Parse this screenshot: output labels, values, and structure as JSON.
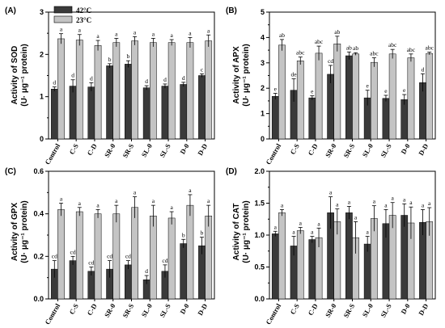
{
  "legend": [
    {
      "label": "42°C",
      "color": "#3a3a3a"
    },
    {
      "label": "23°C",
      "color": "#c4c4c4"
    }
  ],
  "chart_data": [
    {
      "type": "bar",
      "panel": "(A)",
      "ylabel_line1": "Activity of SOD",
      "ylabel_line2": "(U· μg⁻¹ protein)",
      "ylim": [
        0,
        3
      ],
      "yticks": [
        "0",
        "1",
        "2",
        "3"
      ],
      "categories": [
        "Control",
        "C-S",
        "C-D",
        "SR-0",
        "SR-S",
        "SL-0",
        "SL-S",
        "D-0",
        "D-D"
      ],
      "series": [
        {
          "name": "42°C",
          "values": [
            1.18,
            1.25,
            1.23,
            1.73,
            1.77,
            1.21,
            1.25,
            1.29,
            1.5
          ],
          "errors": [
            0.05,
            0.15,
            0.1,
            0.05,
            0.08,
            0.05,
            0.05,
            0.05,
            0.04
          ],
          "sig": [
            "d",
            "d",
            "d",
            "b",
            "b",
            "d",
            "d",
            "d",
            "c"
          ]
        },
        {
          "name": "23°C",
          "values": [
            2.37,
            2.34,
            2.21,
            2.28,
            2.32,
            2.28,
            2.28,
            2.28,
            2.32
          ],
          "errors": [
            0.12,
            0.13,
            0.12,
            0.1,
            0.1,
            0.1,
            0.07,
            0.12,
            0.14
          ],
          "sig": [
            "a",
            "a",
            "a",
            "a",
            "a",
            "a",
            "a",
            "a",
            "a"
          ]
        }
      ]
    },
    {
      "type": "bar",
      "panel": "(B)",
      "ylabel_line1": "Activity of APX",
      "ylabel_line2": "(U· μg⁻¹ protein)",
      "ylim": [
        0,
        5
      ],
      "yticks": [
        "0",
        "1",
        "2",
        "3",
        "4",
        "5"
      ],
      "categories": [
        "Control",
        "C-S",
        "C-D",
        "SR-0",
        "SR-S",
        "SL-0",
        "SL-S",
        "D-0",
        "D-D"
      ],
      "series": [
        {
          "name": "42°C",
          "values": [
            1.68,
            1.92,
            1.62,
            2.55,
            3.28,
            1.62,
            1.6,
            1.55,
            2.22
          ],
          "errors": [
            0.12,
            0.45,
            0.08,
            0.35,
            0.15,
            0.3,
            0.12,
            0.2,
            0.35
          ],
          "sig": [
            "e",
            "de",
            "e",
            "cd",
            "ab",
            "e",
            "e",
            "e",
            "d"
          ]
        },
        {
          "name": "23°C",
          "values": [
            3.7,
            3.08,
            3.38,
            3.75,
            3.35,
            3.02,
            3.35,
            3.2,
            3.37
          ],
          "errors": [
            0.22,
            0.15,
            0.28,
            0.3,
            0.05,
            0.18,
            0.18,
            0.15,
            0.05
          ],
          "sig": [
            "ab",
            "abc",
            "abc",
            "ab",
            "ab",
            "abc",
            "abc",
            "abc",
            "abc"
          ]
        }
      ]
    },
    {
      "type": "bar",
      "panel": "(C)",
      "ylabel_line1": "Activity of GPX",
      "ylabel_line2": "(U· μg⁻¹ protein)",
      "ylim": [
        0,
        0.6
      ],
      "yticks": [
        "0.0",
        "0.2",
        "0.4",
        "0.6"
      ],
      "categories": [
        "Control",
        "C-S",
        "C-D",
        "SR-0",
        "SR-S",
        "SL-0",
        "SL-S",
        "D-0",
        "D-D"
      ],
      "series": [
        {
          "name": "42°C",
          "values": [
            0.14,
            0.18,
            0.13,
            0.14,
            0.16,
            0.09,
            0.13,
            0.26,
            0.25
          ],
          "errors": [
            0.04,
            0.02,
            0.02,
            0.04,
            0.02,
            0.02,
            0.03,
            0.02,
            0.04
          ],
          "sig": [
            "cd",
            "cd",
            "cd",
            "cd",
            "cd",
            "d",
            "cd",
            "b",
            "b"
          ]
        },
        {
          "name": "23°C",
          "values": [
            0.42,
            0.41,
            0.4,
            0.4,
            0.43,
            0.39,
            0.38,
            0.44,
            0.39
          ],
          "errors": [
            0.03,
            0.02,
            0.02,
            0.04,
            0.05,
            0.05,
            0.03,
            0.05,
            0.05
          ],
          "sig": [
            "a",
            "a",
            "a",
            "a",
            "a",
            "a",
            "a",
            "a",
            "a"
          ]
        }
      ]
    },
    {
      "type": "bar",
      "panel": "(D)",
      "ylabel_line1": "Activity of CAT",
      "ylabel_line2": "(U· μg⁻¹ protein)",
      "ylim": [
        0,
        2.0
      ],
      "yticks": [
        "0.0",
        "0.5",
        "1.0",
        "1.5",
        "2.0"
      ],
      "categories": [
        "Control",
        "C-S",
        "C-D",
        "SR-0",
        "SR-S",
        "SL-0",
        "SL-S",
        "D-0",
        "D-D"
      ],
      "series": [
        {
          "name": "42°C",
          "values": [
            1.02,
            0.83,
            0.93,
            1.35,
            1.35,
            0.86,
            1.18,
            1.31,
            1.2
          ],
          "errors": [
            0.04,
            0.15,
            0.05,
            0.25,
            0.1,
            0.12,
            0.22,
            0.18,
            0.2
          ],
          "sig": [
            "a",
            "a",
            "a",
            "a",
            "a",
            "a",
            "a",
            "a",
            "a"
          ]
        },
        {
          "name": "23°C",
          "values": [
            1.35,
            1.07,
            0.96,
            1.21,
            0.96,
            1.26,
            1.31,
            1.19,
            1.21
          ],
          "errors": [
            0.05,
            0.05,
            0.15,
            0.2,
            0.25,
            0.2,
            0.2,
            0.25,
            0.22
          ],
          "sig": [
            "a",
            "a",
            "a",
            "a",
            "a",
            "a",
            "a",
            "a",
            "a"
          ]
        }
      ]
    }
  ]
}
